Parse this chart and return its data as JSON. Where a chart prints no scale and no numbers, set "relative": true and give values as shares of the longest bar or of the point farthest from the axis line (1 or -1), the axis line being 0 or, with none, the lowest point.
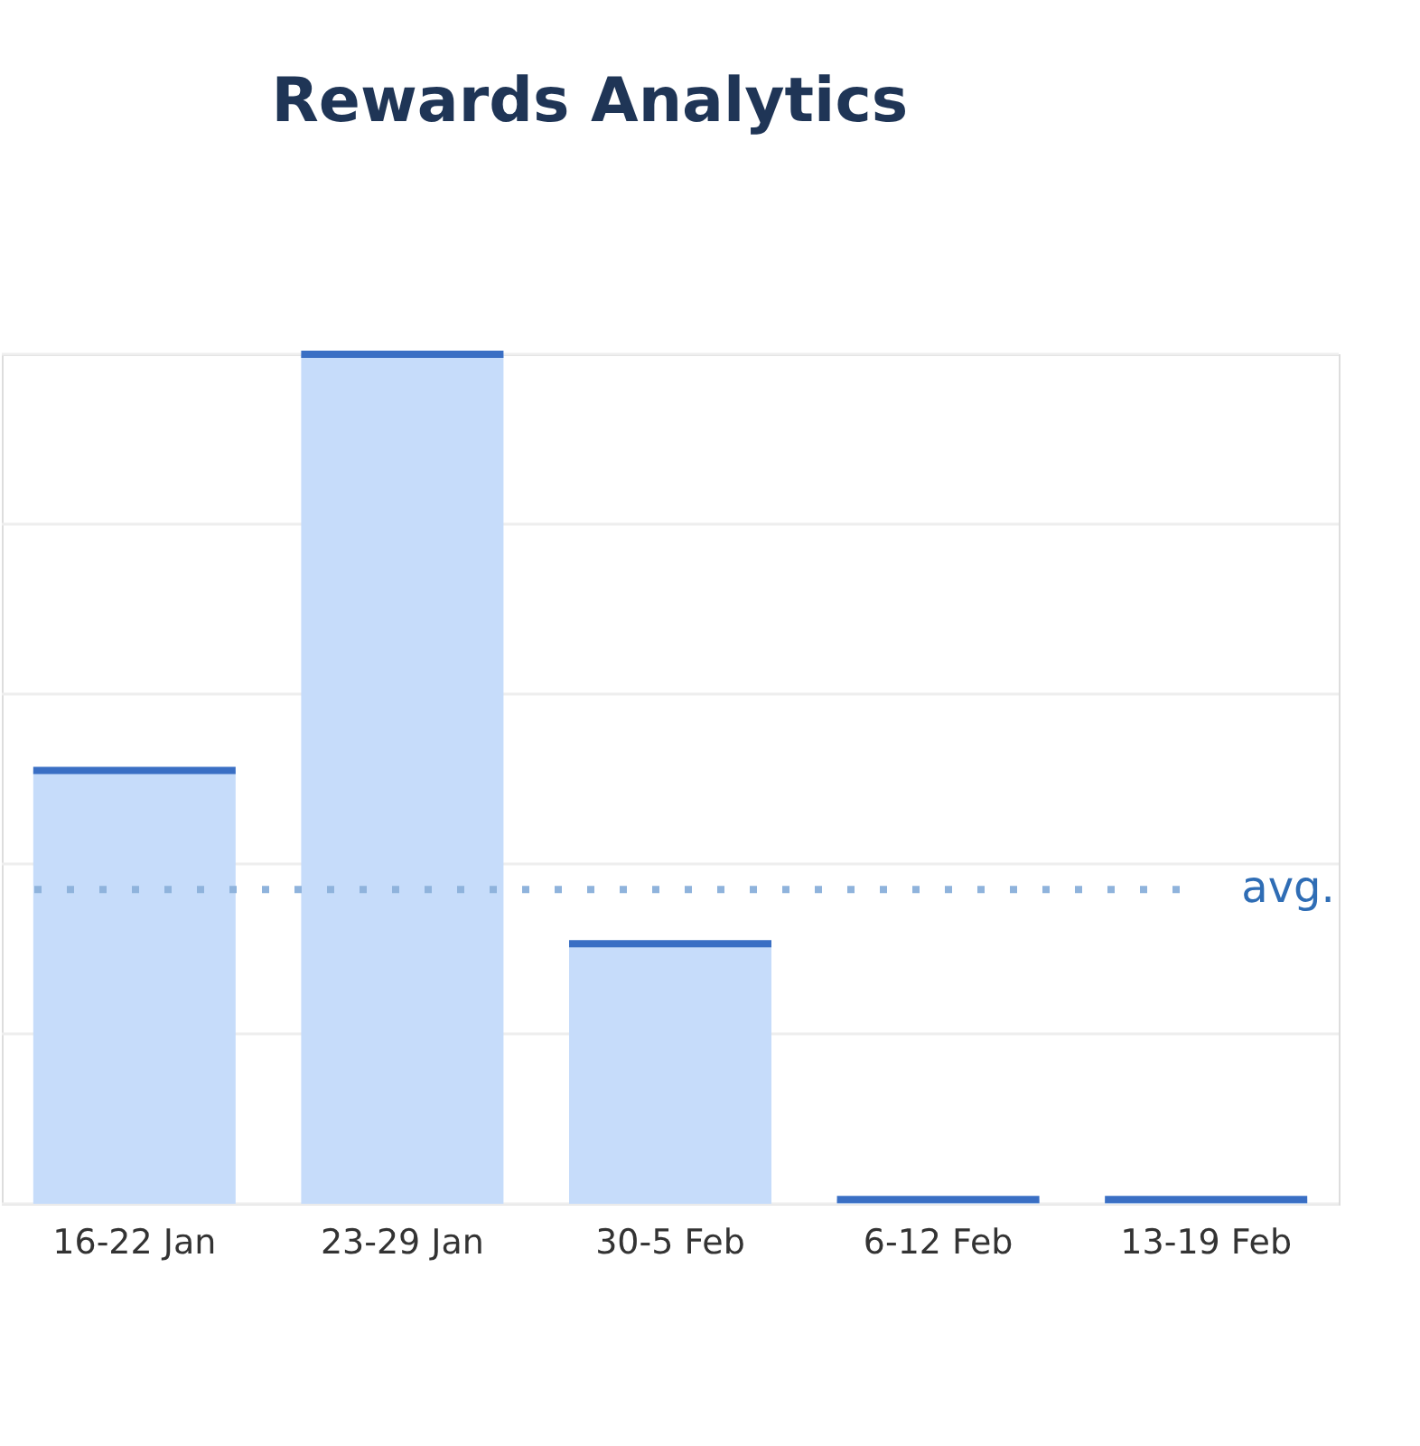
{
  "chart_data": {
    "type": "bar",
    "title": "Rewards Analytics",
    "relative": true,
    "categories": [
      "16-22 Jan",
      "23-29 Jan",
      "30-5 Feb",
      "6-12 Feb",
      "13-19 Feb"
    ],
    "series": [
      {
        "color": "#c6dcfa",
        "values": [
          0.51,
          1,
          0.306,
          0.005,
          0.005
        ]
      }
    ],
    "ref_lines": [
      {
        "axis": "y",
        "value": 0.37,
        "label": "avg.",
        "color": "#8fb3dc",
        "line_style": "dotted"
      }
    ],
    "grid": "y"
  }
}
